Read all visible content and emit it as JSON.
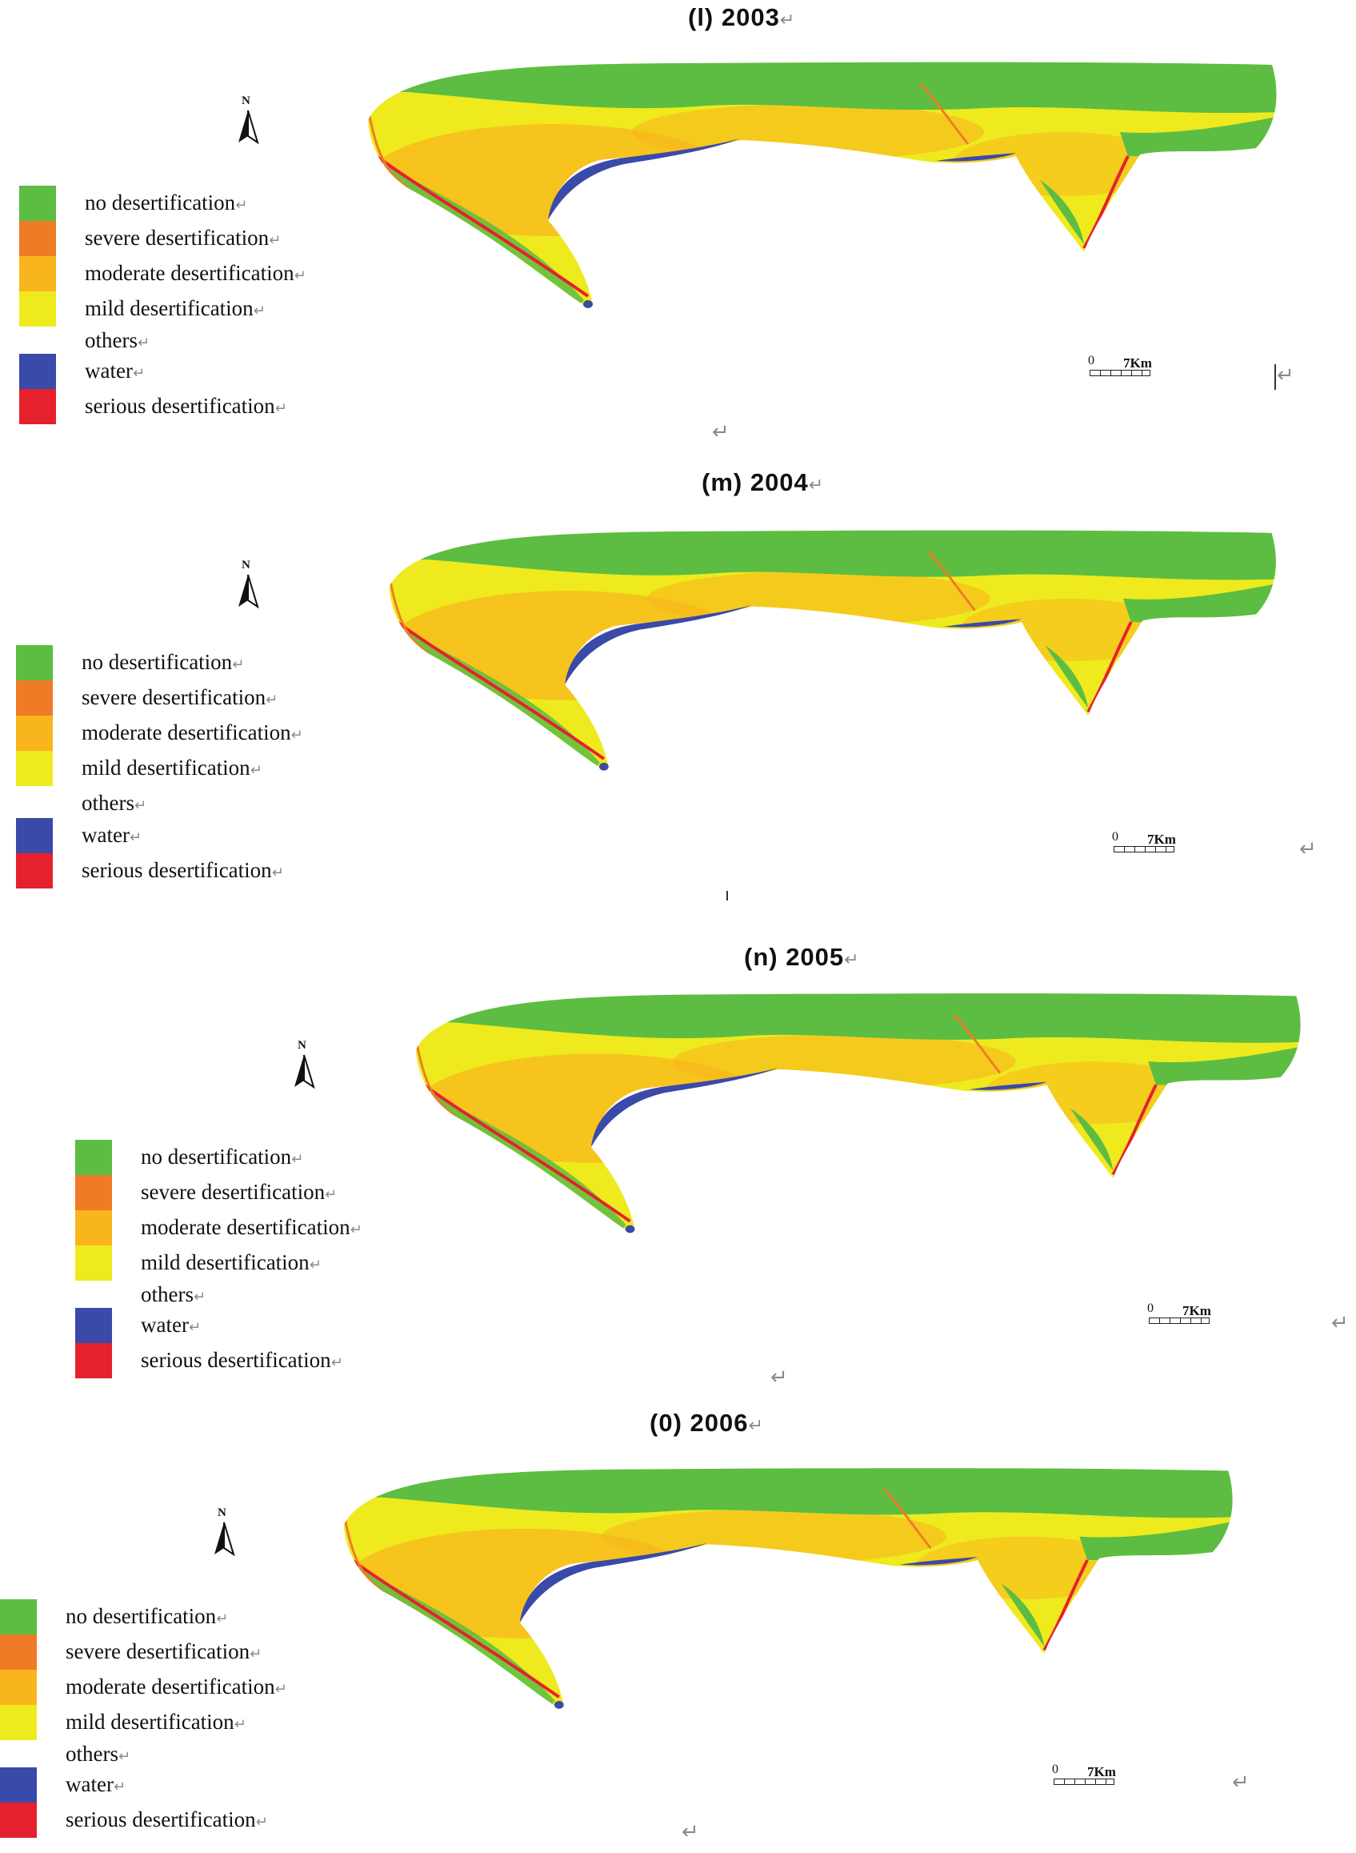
{
  "panels": [
    {
      "title": "(l) 2003"
    },
    {
      "title": "(m) 2004"
    },
    {
      "title": "(n) 2005"
    },
    {
      "title": "(0) 2006"
    }
  ],
  "return_mark": "↵",
  "north_label": "N",
  "legend": {
    "items": [
      {
        "label": "no desertification",
        "color": "#5cbd42"
      },
      {
        "label": "severe desertification",
        "color": "#ef7b27"
      },
      {
        "label": "moderate desertification",
        "color": "#f9b51d"
      },
      {
        "label": "mild desertification",
        "color": "#eeea1e"
      },
      {
        "label": "others",
        "color": ""
      },
      {
        "label": "water",
        "color": "#3a4aa8"
      },
      {
        "label": "serious desertification",
        "color": "#e5212e"
      }
    ]
  },
  "scale_bar": {
    "zero": "0",
    "value": "7Km"
  },
  "map_colors": {
    "none": "#5cbd42",
    "mild": "#eeea1e",
    "moderate": "#f9b51d",
    "severe": "#ef7b27",
    "serious": "#e5212e",
    "water": "#3a4aa8"
  }
}
